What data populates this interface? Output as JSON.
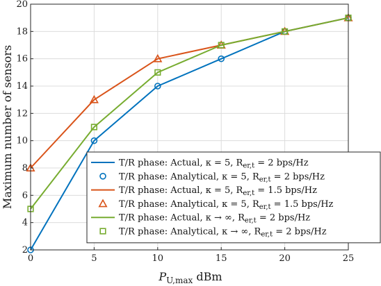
{
  "chart_data": {
    "type": "line",
    "x": [
      0,
      5,
      10,
      15,
      20,
      25
    ],
    "xlim": [
      0,
      25
    ],
    "ylim": [
      2,
      20
    ],
    "xticks": [
      "0",
      "5",
      "10",
      "15",
      "20",
      "25"
    ],
    "yticks": [
      "2",
      "4",
      "6",
      "8",
      "10",
      "12",
      "14",
      "16",
      "18",
      "20"
    ],
    "xlabel": "P_U,max dBm",
    "ylabel": "Maximum number of sensors",
    "grid": true,
    "legend_position": "bottom-right",
    "series": [
      {
        "name": "T/R phase: Actual, κ = 5, R_er,t = 2 bps/Hz",
        "style": "line",
        "marker": "none",
        "color": "#0072BD",
        "values": [
          2,
          10,
          14,
          16,
          18,
          19
        ]
      },
      {
        "name": "T/R phase: Analytical, κ = 5, R_er,t = 2 bps/Hz",
        "style": "markers",
        "marker": "circle",
        "color": "#0072BD",
        "values": [
          2,
          10,
          14,
          16,
          18,
          19
        ]
      },
      {
        "name": "T/R phase: Actual, κ = 5, R_er,t = 1.5 bps/Hz",
        "style": "line",
        "marker": "none",
        "color": "#D95319",
        "values": [
          8,
          13,
          16,
          17,
          18,
          19
        ]
      },
      {
        "name": "T/R phase: Analytical, κ = 5, R_er,t = 1.5 bps/Hz",
        "style": "markers",
        "marker": "triangle",
        "color": "#D95319",
        "values": [
          8,
          13,
          16,
          17,
          18,
          19
        ]
      },
      {
        "name": "T/R phase: Actual, κ → ∞, R_er,t = 2 bps/Hz",
        "style": "line",
        "marker": "none",
        "color": "#77AC30",
        "values": [
          5,
          11,
          15,
          17,
          18,
          19
        ]
      },
      {
        "name": "T/R phase: Analytical, κ → ∞, R_er,t = 2 bps/Hz",
        "style": "markers",
        "marker": "square",
        "color": "#77AC30",
        "values": [
          5,
          11,
          15,
          17,
          18,
          19
        ]
      }
    ]
  }
}
